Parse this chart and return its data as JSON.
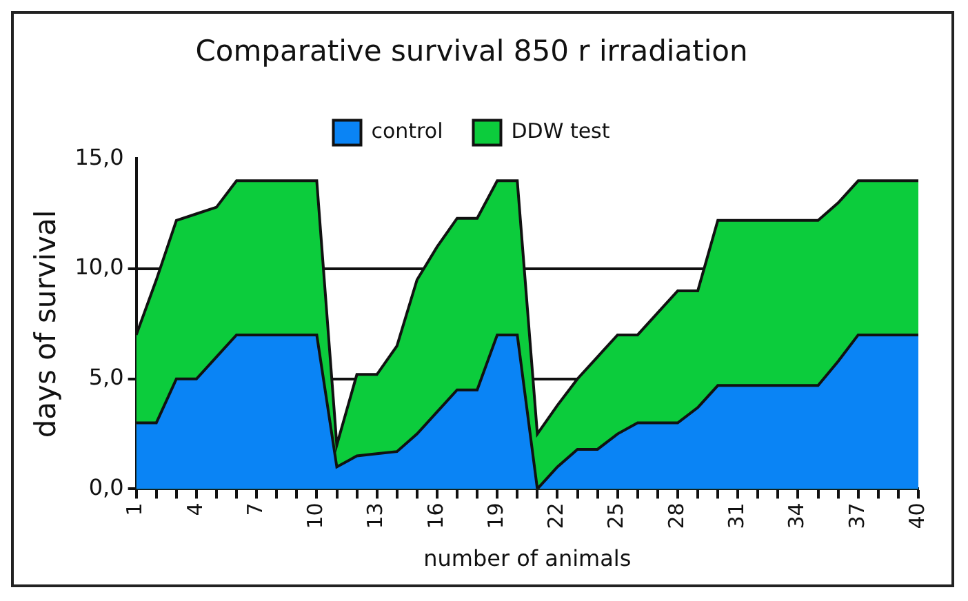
{
  "chart_data": {
    "type": "area",
    "title": "Comparative survival 850 r irradiation",
    "xlabel": "number of animals",
    "ylabel": "days of survival",
    "categories": [
      "1",
      null,
      null,
      "4",
      null,
      null,
      "7",
      null,
      null,
      "10",
      null,
      null,
      "13",
      null,
      null,
      "16",
      null,
      null,
      "19",
      null,
      null,
      "22",
      null,
      null,
      "25",
      null,
      null,
      "28",
      null,
      null,
      "31",
      null,
      null,
      "34",
      null,
      null,
      "37",
      null,
      null,
      "40"
    ],
    "series": [
      {
        "name": "control",
        "color": "#0a84f5",
        "values": [
          3,
          3,
          5,
          5,
          6,
          7,
          7,
          7,
          7,
          7,
          1,
          1.5,
          1.6,
          1.7,
          2.5,
          3.5,
          4.5,
          4.5,
          7,
          7,
          0,
          1,
          1.8,
          1.8,
          2.5,
          3,
          3,
          3,
          3.7,
          4.7,
          4.7,
          4.7,
          4.7,
          4.7,
          4.7,
          5.8,
          7,
          7,
          7,
          7
        ]
      },
      {
        "name": "DDW test",
        "color": "#0ccc3c",
        "values": [
          7,
          9.5,
          12.2,
          12.5,
          12.8,
          14,
          14,
          14,
          14,
          14,
          2,
          5.2,
          5.2,
          6.5,
          9.5,
          11,
          12.3,
          12.3,
          14,
          14,
          2.5,
          3.8,
          5,
          6,
          7,
          7,
          8,
          9,
          9,
          12.2,
          12.2,
          12.2,
          12.2,
          12.2,
          12.2,
          13,
          14,
          14,
          14,
          14
        ]
      }
    ],
    "ylim": [
      0,
      15
    ],
    "yticks": [
      {
        "value": 0,
        "label": "0,0"
      },
      {
        "value": 5,
        "label": "5,0"
      },
      {
        "value": 10,
        "label": "10,0"
      },
      {
        "value": 15,
        "label": "15,0"
      }
    ],
    "grid": "y",
    "legend": "top"
  }
}
